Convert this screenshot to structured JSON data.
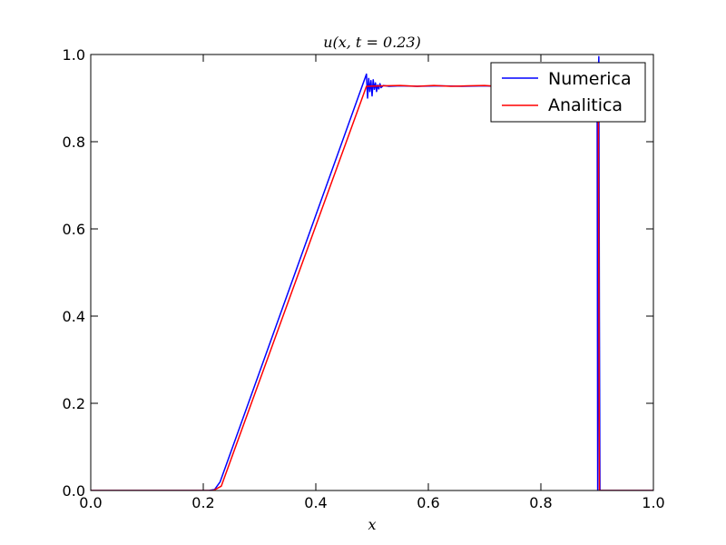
{
  "chart_data": {
    "type": "line",
    "title": "u(x, t = 0.23)",
    "xlabel": "x",
    "ylabel": "",
    "xlim": [
      0.0,
      1.0
    ],
    "ylim": [
      0.0,
      1.0
    ],
    "x_ticks": [
      "0.0",
      "0.2",
      "0.4",
      "0.6",
      "0.8",
      "1.0"
    ],
    "y_ticks": [
      "0.0",
      "0.2",
      "0.4",
      "0.6",
      "0.8",
      "1.0"
    ],
    "grid": false,
    "legend_position": "top-right",
    "series": [
      {
        "name": "Numerica",
        "color": "#0000ff",
        "x": [
          0.0,
          0.21,
          0.22,
          0.23,
          0.49,
          0.492,
          0.494,
          0.496,
          0.498,
          0.5,
          0.502,
          0.504,
          0.506,
          0.508,
          0.51,
          0.512,
          0.514,
          0.516,
          0.52,
          0.53,
          0.55,
          0.58,
          0.62,
          0.66,
          0.7,
          0.72,
          0.76,
          0.8,
          0.84,
          0.88,
          0.9,
          0.901,
          0.902,
          0.903,
          0.904,
          0.905,
          1.0
        ],
        "y": [
          0.0,
          0.0,
          0.002,
          0.02,
          0.955,
          0.9,
          0.945,
          0.915,
          0.94,
          0.905,
          0.942,
          0.92,
          0.935,
          0.915,
          0.93,
          0.921,
          0.933,
          0.924,
          0.929,
          0.927,
          0.928,
          0.927,
          0.928,
          0.927,
          0.928,
          0.927,
          0.928,
          0.927,
          0.928,
          0.927,
          0.93,
          0.0,
          0.95,
          0.995,
          0.4,
          0.0,
          0.0
        ]
      },
      {
        "name": "Analitica",
        "color": "#ff0000",
        "x": [
          0.0,
          0.218,
          0.232,
          0.49,
          0.52,
          0.55,
          0.58,
          0.61,
          0.64,
          0.67,
          0.7,
          0.72,
          0.76,
          0.8,
          0.84,
          0.88,
          0.897,
          0.899,
          0.902,
          0.904,
          0.905,
          1.0
        ],
        "y": [
          0.0,
          0.0,
          0.01,
          0.927,
          0.928,
          0.929,
          0.927,
          0.929,
          0.927,
          0.928,
          0.929,
          0.927,
          0.928,
          0.927,
          0.928,
          0.927,
          0.928,
          0.9,
          0.9,
          0.0,
          0.0,
          0.0
        ]
      }
    ]
  }
}
